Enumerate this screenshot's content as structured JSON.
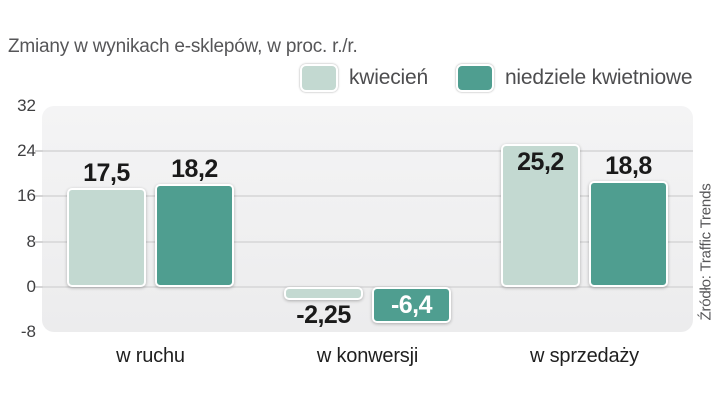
{
  "title": "Zmiany w wynikach e-sklepów, w proc. r./r.",
  "source": "Źródło: Traffic Trends",
  "colors": {
    "series_light": "#c3d9d1",
    "series_dark": "#4f9e90",
    "plot_bg": "#f1f1f2",
    "gridline": "#dcdcdd",
    "value_label_dark": "#1a1a1a",
    "value_label_light": "#ffffff"
  },
  "chart_data": {
    "type": "bar",
    "title": "Zmiany w wynikach e-sklepów, w proc. r./r.",
    "categories": [
      "w ruchu",
      "w konwersji",
      "w sprzedaży"
    ],
    "series": [
      {
        "name": "kwiecień",
        "color": "#c3d9d1",
        "values": [
          17.5,
          -2.25,
          25.2
        ],
        "labels": [
          "17,5",
          "-2,25",
          "25,2"
        ],
        "label_pos": [
          "above",
          "below",
          "inside"
        ],
        "label_colors": [
          "#1a1a1a",
          "#1a1a1a",
          "#1a1a1a"
        ]
      },
      {
        "name": "niedziele kwietniowe",
        "color": "#4f9e90",
        "values": [
          18.2,
          -6.4,
          18.8
        ],
        "labels": [
          "18,2",
          "-6,4",
          "18,8"
        ],
        "label_pos": [
          "above",
          "inside",
          "above"
        ],
        "label_colors": [
          "#1a1a1a",
          "#ffffff",
          "#1a1a1a"
        ]
      }
    ],
    "y_ticks": [
      32,
      24,
      16,
      8,
      0,
      -8
    ],
    "ylim": [
      -8,
      32
    ],
    "grid": true,
    "legend_position": "top-right",
    "xlabel": "",
    "ylabel": "",
    "source": "Źródło: Traffic Trends"
  }
}
